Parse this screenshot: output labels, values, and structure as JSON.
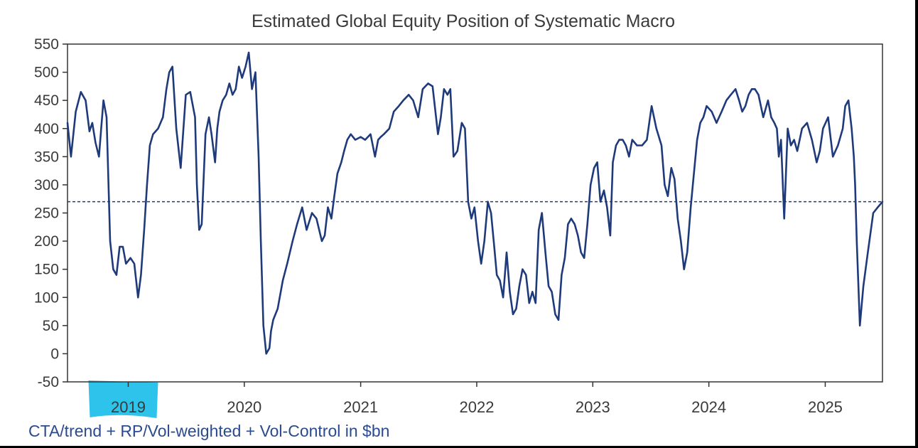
{
  "colors": {
    "series": "#1f3a7a",
    "reference_line": "#1f3a7a",
    "axis": "#333333",
    "highlight": "#2ec3ea",
    "source_text": "#2a4b8d"
  },
  "footnote": "CTA/trend + RP/Vol-weighted + Vol-Control in $bn",
  "chart_data": {
    "type": "line",
    "title": "Estimated Global Equity Position of Systematic Macro",
    "xlabel": "",
    "ylabel": "",
    "xlim": [
      "2018-06-24",
      "2025-06-30"
    ],
    "ylim": [
      -50,
      550
    ],
    "yticks": [
      -50,
      0,
      50,
      100,
      150,
      200,
      250,
      300,
      350,
      400,
      450,
      500,
      550
    ],
    "xticks": [
      {
        "label": "2019",
        "date": "2019-01-01"
      },
      {
        "label": "2020",
        "date": "2020-01-01"
      },
      {
        "label": "2021",
        "date": "2021-01-01"
      },
      {
        "label": "2022",
        "date": "2022-01-01"
      },
      {
        "label": "2023",
        "date": "2023-01-01"
      },
      {
        "label": "2024",
        "date": "2024-01-01"
      },
      {
        "label": "2025",
        "date": "2025-01-01"
      }
    ],
    "grid": false,
    "legend": "none",
    "highlighted_tick": "2019",
    "reference_lines": [
      {
        "axis": "y",
        "value": 270,
        "style": "dashed"
      }
    ],
    "series": [
      {
        "x": [
          "2018-06-24",
          "2018-07-05",
          "2018-07-20",
          "2018-08-05",
          "2018-08-20",
          "2018-09-01",
          "2018-09-10",
          "2018-09-20",
          "2018-10-01",
          "2018-10-08",
          "2018-10-15",
          "2018-10-25",
          "2018-11-05",
          "2018-11-15",
          "2018-11-25",
          "2018-12-05",
          "2018-12-15",
          "2018-12-25",
          "2019-01-08",
          "2019-01-20",
          "2019-02-01",
          "2019-02-10",
          "2019-02-20",
          "2019-03-01",
          "2019-03-10",
          "2019-03-20",
          "2019-04-05",
          "2019-04-20",
          "2019-05-01",
          "2019-05-10",
          "2019-05-20",
          "2019-06-01",
          "2019-06-15",
          "2019-07-01",
          "2019-07-15",
          "2019-07-30",
          "2019-08-05",
          "2019-08-12",
          "2019-08-20",
          "2019-09-01",
          "2019-09-12",
          "2019-09-20",
          "2019-10-01",
          "2019-10-08",
          "2019-10-15",
          "2019-10-25",
          "2019-11-05",
          "2019-11-15",
          "2019-11-25",
          "2019-12-05",
          "2019-12-15",
          "2019-12-25",
          "2020-01-05",
          "2020-01-15",
          "2020-01-25",
          "2020-02-05",
          "2020-02-15",
          "2020-02-22",
          "2020-03-01",
          "2020-03-10",
          "2020-03-20",
          "2020-03-25",
          "2020-04-01",
          "2020-04-15",
          "2020-05-01",
          "2020-05-15",
          "2020-06-01",
          "2020-06-15",
          "2020-07-01",
          "2020-07-15",
          "2020-08-01",
          "2020-08-15",
          "2020-09-01",
          "2020-09-10",
          "2020-09-20",
          "2020-10-01",
          "2020-10-10",
          "2020-10-20",
          "2020-11-01",
          "2020-11-10",
          "2020-11-20",
          "2020-12-01",
          "2020-12-15",
          "2021-01-01",
          "2021-01-15",
          "2021-02-01",
          "2021-02-15",
          "2021-02-25",
          "2021-03-05",
          "2021-03-15",
          "2021-04-01",
          "2021-04-15",
          "2021-05-01",
          "2021-05-15",
          "2021-06-01",
          "2021-06-15",
          "2021-07-01",
          "2021-07-15",
          "2021-08-01",
          "2021-08-15",
          "2021-09-01",
          "2021-09-10",
          "2021-09-20",
          "2021-10-01",
          "2021-10-10",
          "2021-10-20",
          "2021-11-01",
          "2021-11-15",
          "2021-11-25",
          "2021-12-05",
          "2021-12-15",
          "2021-12-25",
          "2022-01-05",
          "2022-01-15",
          "2022-01-25",
          "2022-02-05",
          "2022-02-15",
          "2022-02-25",
          "2022-03-05",
          "2022-03-15",
          "2022-03-25",
          "2022-04-05",
          "2022-04-15",
          "2022-04-25",
          "2022-05-05",
          "2022-05-15",
          "2022-05-25",
          "2022-06-05",
          "2022-06-15",
          "2022-06-25",
          "2022-07-05",
          "2022-07-15",
          "2022-07-25",
          "2022-08-05",
          "2022-08-15",
          "2022-08-25",
          "2022-09-05",
          "2022-09-15",
          "2022-09-25",
          "2022-10-05",
          "2022-10-15",
          "2022-10-25",
          "2022-11-05",
          "2022-11-15",
          "2022-11-25",
          "2022-12-05",
          "2022-12-15",
          "2022-12-25",
          "2023-01-05",
          "2023-01-15",
          "2023-01-25",
          "2023-02-05",
          "2023-02-15",
          "2023-02-25",
          "2023-03-05",
          "2023-03-15",
          "2023-03-25",
          "2023-04-05",
          "2023-04-15",
          "2023-04-25",
          "2023-05-05",
          "2023-05-20",
          "2023-06-05",
          "2023-06-20",
          "2023-07-05",
          "2023-07-20",
          "2023-08-05",
          "2023-08-15",
          "2023-08-25",
          "2023-09-05",
          "2023-09-15",
          "2023-09-25",
          "2023-10-05",
          "2023-10-15",
          "2023-10-25",
          "2023-11-05",
          "2023-11-15",
          "2023-11-25",
          "2023-12-05",
          "2023-12-15",
          "2023-12-25",
          "2024-01-10",
          "2024-01-25",
          "2024-02-10",
          "2024-02-25",
          "2024-03-10",
          "2024-03-25",
          "2024-04-05",
          "2024-04-15",
          "2024-04-25",
          "2024-05-05",
          "2024-05-15",
          "2024-05-25",
          "2024-06-05",
          "2024-06-20",
          "2024-07-05",
          "2024-07-15",
          "2024-07-25",
          "2024-08-02",
          "2024-08-08",
          "2024-08-15",
          "2024-08-25",
          "2024-09-05",
          "2024-09-15",
          "2024-09-25",
          "2024-10-05",
          "2024-10-20",
          "2024-11-05",
          "2024-11-20",
          "2024-12-05",
          "2024-12-15",
          "2024-12-25",
          "2025-01-10",
          "2025-01-25",
          "2025-02-10",
          "2025-02-25",
          "2025-03-05",
          "2025-03-15",
          "2025-03-25",
          "2025-04-01",
          "2025-04-05",
          "2025-04-10",
          "2025-04-20",
          "2025-05-01",
          "2025-05-15",
          "2025-06-01",
          "2025-06-15",
          "2025-06-30"
        ],
        "y": [
          410,
          350,
          430,
          465,
          450,
          395,
          410,
          375,
          350,
          400,
          450,
          420,
          200,
          150,
          140,
          190,
          190,
          160,
          170,
          160,
          100,
          140,
          220,
          300,
          370,
          390,
          400,
          420,
          470,
          500,
          510,
          400,
          330,
          460,
          465,
          420,
          300,
          220,
          230,
          390,
          420,
          390,
          340,
          400,
          430,
          450,
          460,
          480,
          460,
          470,
          510,
          490,
          510,
          535,
          470,
          500,
          350,
          200,
          50,
          0,
          10,
          40,
          60,
          80,
          130,
          160,
          200,
          230,
          260,
          220,
          250,
          240,
          200,
          210,
          260,
          240,
          280,
          320,
          340,
          360,
          380,
          390,
          380,
          385,
          380,
          390,
          350,
          380,
          385,
          390,
          400,
          430,
          440,
          450,
          460,
          450,
          420,
          470,
          480,
          475,
          390,
          420,
          470,
          460,
          470,
          350,
          360,
          410,
          400,
          270,
          240,
          260,
          200,
          160,
          200,
          270,
          250,
          190,
          140,
          130,
          100,
          180,
          110,
          70,
          80,
          120,
          150,
          140,
          90,
          110,
          90,
          220,
          250,
          180,
          120,
          110,
          70,
          60,
          140,
          170,
          230,
          240,
          230,
          210,
          180,
          170,
          230,
          300,
          330,
          340,
          270,
          290,
          260,
          210,
          340,
          370,
          380,
          380,
          370,
          350,
          380,
          370,
          370,
          380,
          440,
          400,
          370,
          300,
          280,
          330,
          310,
          240,
          200,
          150,
          180,
          260,
          320,
          380,
          410,
          420,
          440,
          430,
          410,
          430,
          450,
          460,
          470,
          450,
          430,
          440,
          460,
          470,
          470,
          460,
          420,
          450,
          420,
          410,
          400,
          350,
          380,
          240,
          400,
          370,
          380,
          360,
          400,
          410,
          380,
          340,
          360,
          400,
          420,
          350,
          370,
          400,
          440,
          450,
          400,
          350,
          300,
          200,
          50,
          120,
          180,
          250,
          260,
          270
        ]
      }
    ]
  }
}
